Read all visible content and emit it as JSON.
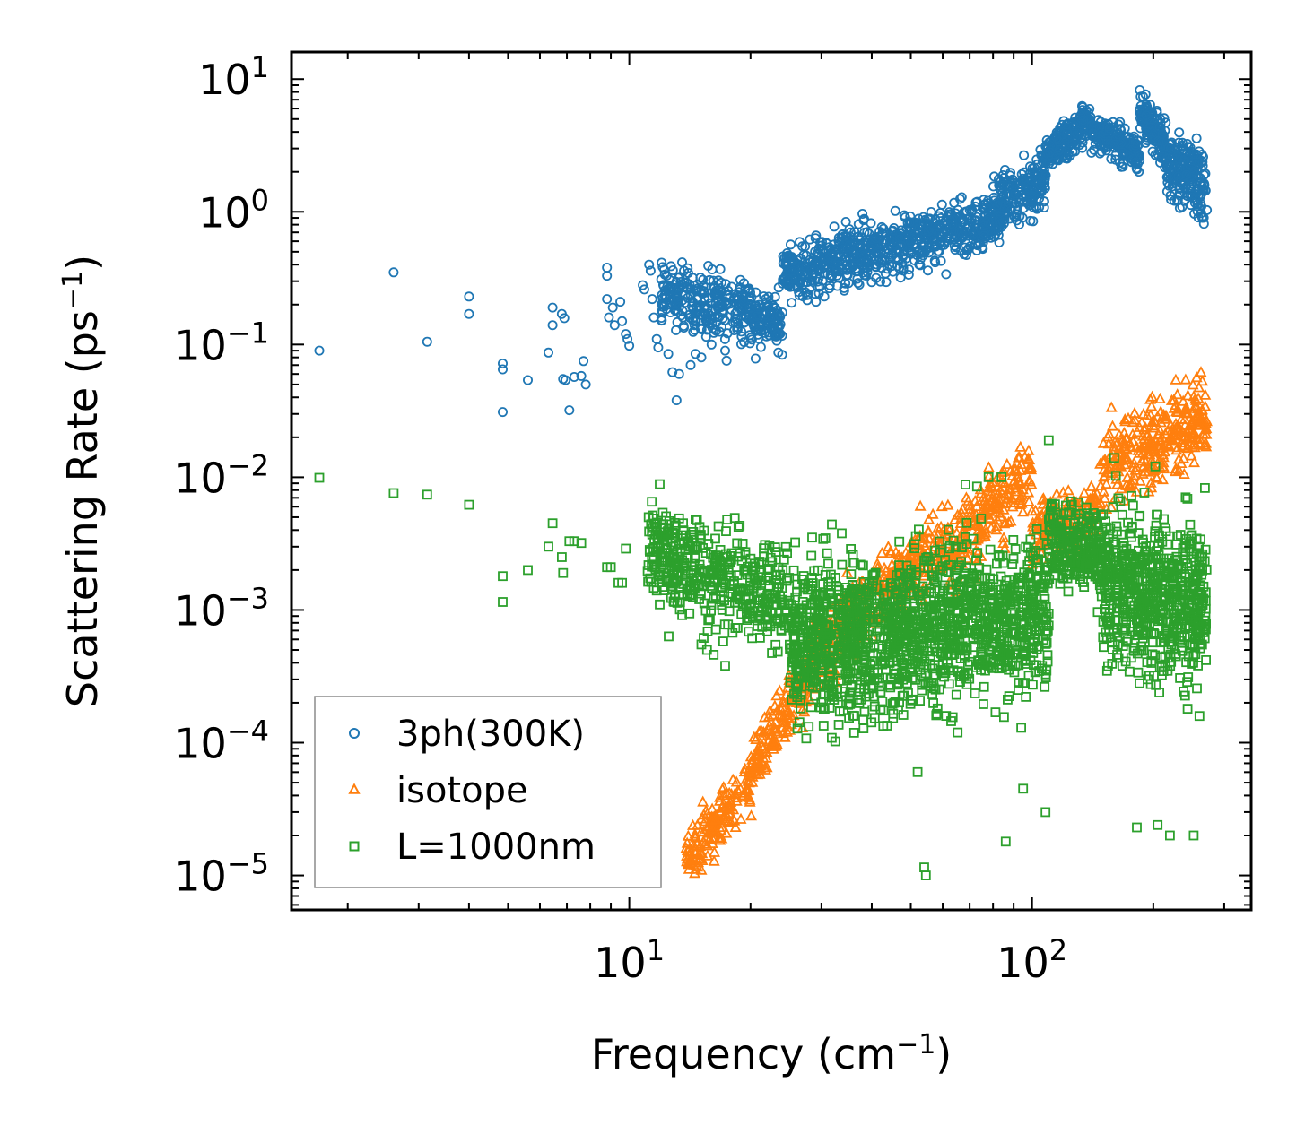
{
  "chart_data": {
    "type": "scatter",
    "x_scale": "log",
    "y_scale": "log",
    "xlabel": "Frequency (cm",
    "xlabel_sup": "−1",
    "xlabel_end": ")",
    "ylabel": "Scattering Rate (ps",
    "ylabel_sup": "−1",
    "ylabel_end": ")",
    "xlim": [
      1.45,
      350
    ],
    "ylim": [
      5.5e-06,
      16
    ],
    "x_ticks": [
      {
        "value": 10,
        "base": "10",
        "exp": "1"
      },
      {
        "value": 100,
        "base": "10",
        "exp": "2"
      }
    ],
    "y_ticks": [
      {
        "value": 10,
        "base": "10",
        "exp": "1"
      },
      {
        "value": 1,
        "base": "10",
        "exp": "0"
      },
      {
        "value": 0.1,
        "base": "10",
        "exp": "−1"
      },
      {
        "value": 0.01,
        "base": "10",
        "exp": "−2"
      },
      {
        "value": 0.001,
        "base": "10",
        "exp": "−3"
      },
      {
        "value": 0.0001,
        "base": "10",
        "exp": "−4"
      },
      {
        "value": 1e-05,
        "base": "10",
        "exp": "−5"
      }
    ],
    "legend": {
      "position": "lower-left",
      "entries": [
        {
          "label": "3ph(300K)",
          "marker": "circle",
          "color": "#1f77b4"
        },
        {
          "label": "isotope",
          "marker": "triangle",
          "color": "#ff7f0e"
        },
        {
          "label": "L=1000nm",
          "marker": "square",
          "color": "#2ca02c"
        }
      ]
    },
    "series": [
      {
        "name": "3ph(300K)",
        "marker": "circle",
        "color": "#1f77b4",
        "points": [
          [
            1.7,
            0.09
          ],
          [
            2.6,
            0.35
          ],
          [
            3.15,
            0.105
          ],
          [
            4.0,
            0.17
          ],
          [
            4.0,
            0.23
          ],
          [
            4.85,
            0.031
          ],
          [
            4.85,
            0.065
          ],
          [
            4.85,
            0.072
          ],
          [
            5.6,
            0.054
          ],
          [
            6.3,
            0.087
          ],
          [
            6.45,
            0.19
          ],
          [
            6.45,
            0.14
          ],
          [
            6.8,
            0.17
          ],
          [
            6.85,
            0.055
          ],
          [
            6.9,
            0.158
          ],
          [
            6.95,
            0.054
          ],
          [
            7.1,
            0.032
          ],
          [
            7.3,
            0.057
          ],
          [
            7.6,
            0.058
          ],
          [
            7.7,
            0.075
          ],
          [
            7.8,
            0.05
          ],
          [
            8.8,
            0.38
          ],
          [
            8.8,
            0.33
          ],
          [
            8.8,
            0.22
          ],
          [
            8.9,
            0.16
          ],
          [
            9.1,
            0.19
          ],
          [
            9.2,
            0.14
          ],
          [
            9.5,
            0.21
          ],
          [
            9.6,
            0.15
          ],
          [
            9.8,
            0.12
          ],
          [
            9.9,
            0.11
          ],
          [
            10.0,
            0.098
          ],
          [
            10.8,
            0.28
          ],
          [
            10.9,
            0.26
          ],
          [
            11.2,
            0.4
          ],
          [
            11.3,
            0.36
          ],
          [
            11.4,
            0.22
          ],
          [
            11.5,
            0.16
          ],
          [
            11.7,
            0.11
          ],
          [
            11.8,
            0.095
          ],
          [
            12.0,
            0.31
          ],
          [
            12.2,
            0.2
          ],
          [
            12.5,
            0.085
          ],
          [
            12.8,
            0.062
          ],
          [
            13.1,
            0.038
          ],
          [
            13.3,
            0.06
          ],
          [
            14.2,
            0.07
          ],
          [
            14.6,
            0.085
          ],
          [
            15.1,
            0.08
          ],
          [
            16.0,
            0.1
          ],
          [
            17.3,
            0.09
          ]
        ],
        "bands": [
          {
            "x0": 12.0,
            "x1": 24.0,
            "y0": 0.25,
            "y1": 0.14,
            "w": 2.1,
            "n": 380
          },
          {
            "x0": 24.0,
            "x1": 40.0,
            "y0": 0.34,
            "y1": 0.52,
            "w": 1.9,
            "n": 320
          },
          {
            "x0": 40.0,
            "x1": 80.0,
            "y0": 0.52,
            "y1": 0.85,
            "w": 1.8,
            "n": 420
          },
          {
            "x0": 80.0,
            "x1": 108.0,
            "y0": 1.0,
            "y1": 1.8,
            "w": 2.0,
            "n": 220
          },
          {
            "x0": 108.0,
            "x1": 140.0,
            "y0": 2.6,
            "y1": 5.2,
            "w": 1.5,
            "n": 200
          },
          {
            "x0": 140.0,
            "x1": 185.0,
            "y0": 4.2,
            "y1": 2.8,
            "w": 1.5,
            "n": 200
          },
          {
            "x0": 185.0,
            "x1": 215.0,
            "y0": 6.0,
            "y1": 3.0,
            "w": 1.6,
            "n": 150
          },
          {
            "x0": 215.0,
            "x1": 272.0,
            "y0": 2.5,
            "y1": 1.5,
            "w": 2.1,
            "n": 200
          }
        ]
      },
      {
        "name": "isotope",
        "marker": "triangle",
        "color": "#ff7f0e",
        "bands": [
          {
            "x0": 13.8,
            "x1": 20.0,
            "y0": 1.3e-05,
            "y1": 5e-05,
            "w": 1.8,
            "n": 160
          },
          {
            "x0": 20.0,
            "x1": 28.0,
            "y0": 6e-05,
            "y1": 0.00035,
            "w": 2.0,
            "n": 170
          },
          {
            "x0": 28.0,
            "x1": 45.0,
            "y0": 0.0004,
            "y1": 0.0018,
            "w": 2.2,
            "n": 200
          },
          {
            "x0": 45.0,
            "x1": 62.0,
            "y0": 0.0015,
            "y1": 0.0035,
            "w": 2.2,
            "n": 150
          },
          {
            "x0": 62.0,
            "x1": 100.0,
            "y0": 0.0025,
            "y1": 0.012,
            "w": 2.4,
            "n": 210
          },
          {
            "x0": 100.0,
            "x1": 150.0,
            "y0": 0.0035,
            "y1": 0.0065,
            "w": 2.0,
            "n": 160
          },
          {
            "x0": 150.0,
            "x1": 272.0,
            "y0": 0.012,
            "y1": 0.028,
            "w": 2.5,
            "n": 300
          }
        ]
      },
      {
        "name": "L=1000nm",
        "marker": "square",
        "color": "#2ca02c",
        "points": [
          [
            1.7,
            0.0099
          ],
          [
            2.6,
            0.0076
          ],
          [
            3.15,
            0.0074
          ],
          [
            4.0,
            0.0062
          ],
          [
            4.85,
            0.0018
          ],
          [
            4.85,
            0.00115
          ],
          [
            5.6,
            0.002
          ],
          [
            6.3,
            0.003
          ],
          [
            6.45,
            0.0045
          ],
          [
            6.8,
            0.0025
          ],
          [
            6.85,
            0.0019
          ],
          [
            7.1,
            0.0033
          ],
          [
            7.3,
            0.0033
          ],
          [
            7.6,
            0.0032
          ],
          [
            8.8,
            0.0021
          ],
          [
            9.0,
            0.0021
          ],
          [
            9.4,
            0.0016
          ],
          [
            9.6,
            0.0016
          ],
          [
            9.8,
            0.0029
          ],
          [
            11.2,
            0.0039
          ],
          [
            11.4,
            0.0037
          ],
          [
            11.7,
            0.0014
          ],
          [
            11.9,
            0.0011
          ],
          [
            12.5,
            0.0027
          ],
          [
            13.0,
            0.0013
          ],
          [
            13.3,
            0.0049
          ],
          [
            13.6,
            0.0045
          ],
          [
            14.2,
            0.0013
          ],
          [
            14.6,
            0.0048
          ],
          [
            15.1,
            0.00055
          ],
          [
            15.6,
            0.0005
          ],
          [
            16.2,
            0.00046
          ],
          [
            17.3,
            0.00038
          ],
          [
            17.5,
            0.0048
          ],
          [
            54.0,
            1.15e-05
          ],
          [
            54.5,
            1e-05
          ],
          [
            86.0,
            1.8e-05
          ],
          [
            52.0,
            6e-05
          ],
          [
            95.0,
            4.5e-05
          ],
          [
            108.0,
            3e-05
          ],
          [
            220.0,
            2e-05
          ],
          [
            252.0,
            2e-05
          ],
          [
            182.0,
            2.3e-05
          ],
          [
            205.0,
            2.4e-05
          ],
          [
            110.0,
            0.019
          ],
          [
            84.0,
            0.01
          ],
          [
            78.0,
            0.01
          ],
          [
            160.0,
            0.014
          ],
          [
            73.0,
            0.0085
          ]
        ],
        "bands": [
          {
            "x0": 11.0,
            "x1": 25.0,
            "y0": 0.0028,
            "y1": 0.0012,
            "w": 3.0,
            "n": 450
          },
          {
            "x0": 25.0,
            "x1": 45.0,
            "y0": 0.0006,
            "y1": 0.0006,
            "w": 5.5,
            "n": 650
          },
          {
            "x0": 45.0,
            "x1": 75.0,
            "y0": 0.0006,
            "y1": 0.001,
            "w": 5.5,
            "n": 550
          },
          {
            "x0": 75.0,
            "x1": 110.0,
            "y0": 0.0008,
            "y1": 0.001,
            "w": 5.0,
            "n": 360
          },
          {
            "x0": 110.0,
            "x1": 150.0,
            "y0": 0.0032,
            "y1": 0.0028,
            "w": 2.5,
            "n": 260
          },
          {
            "x0": 150.0,
            "x1": 272.0,
            "y0": 0.0015,
            "y1": 0.0011,
            "w": 6.0,
            "n": 650
          }
        ]
      }
    ]
  }
}
